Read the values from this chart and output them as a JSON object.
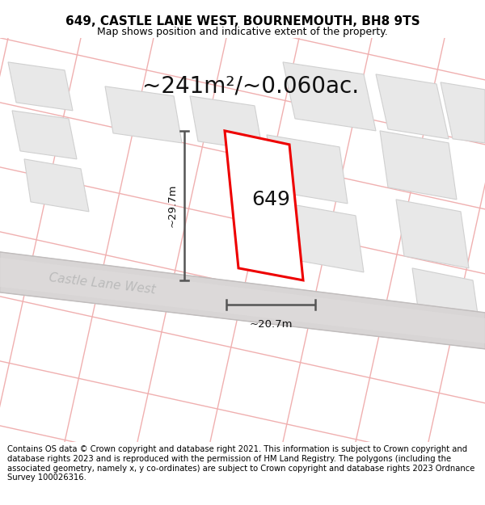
{
  "title": "649, CASTLE LANE WEST, BOURNEMOUTH, BH8 9TS",
  "subtitle": "Map shows position and indicative extent of the property.",
  "area_label": "~241m²/~0.060ac.",
  "property_label": "649",
  "width_label": "~20.7m",
  "height_label": "~29.7m",
  "street_label": "Castle Lane West",
  "footer_text": "Contains OS data © Crown copyright and database right 2021. This information is subject to Crown copyright and database rights 2023 and is reproduced with the permission of HM Land Registry. The polygons (including the associated geometry, namely x, y co-ordinates) are subject to Crown copyright and database rights 2023 Ordnance Survey 100026316.",
  "bg_color": "#ffffff",
  "map_bg": "#ffffff",
  "property_fill": "#ffffff",
  "property_edge": "#ee0000",
  "road_fill": "#d8d5d5",
  "road_edge": "#c8c5c5",
  "building_fill": "#e8e8e8",
  "building_edge": "#d0d0d0",
  "cadastral_color": "#f0b0b0",
  "dim_color": "#555555",
  "title_fontsize": 11,
  "subtitle_fontsize": 9,
  "area_fontsize": 20,
  "label_fontsize": 18,
  "footer_fontsize": 7.2,
  "street_fontsize": 11
}
